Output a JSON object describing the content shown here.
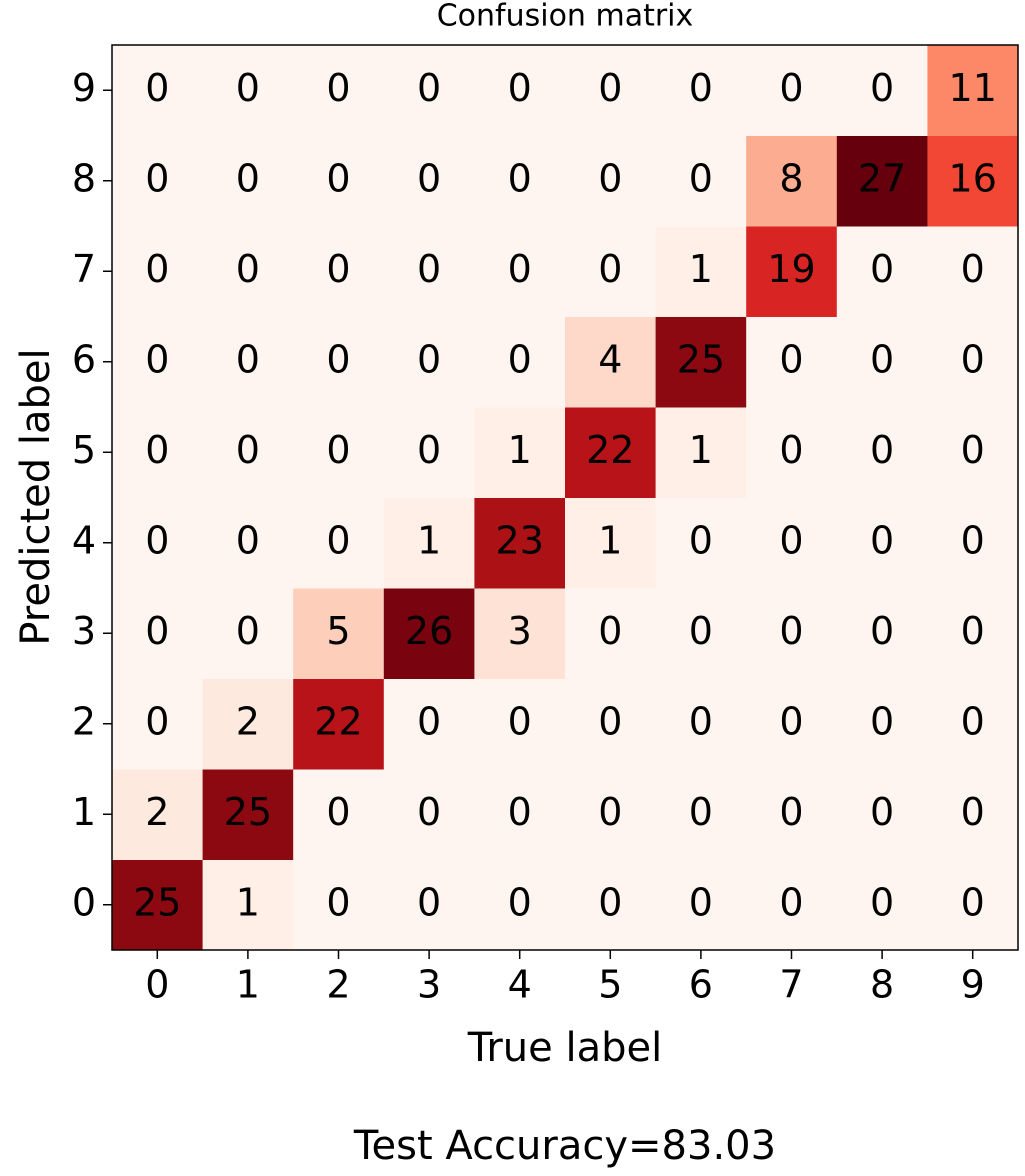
{
  "chart_data": {
    "type": "heatmap",
    "title": "Confusion matrix",
    "xlabel": "True label",
    "ylabel": "Predicted label",
    "x_categories": [
      "0",
      "1",
      "2",
      "3",
      "4",
      "5",
      "6",
      "7",
      "8",
      "9"
    ],
    "y_categories": [
      "0",
      "1",
      "2",
      "3",
      "4",
      "5",
      "6",
      "7",
      "8",
      "9"
    ],
    "values": [
      [
        25,
        1,
        0,
        0,
        0,
        0,
        0,
        0,
        0,
        0
      ],
      [
        2,
        25,
        0,
        0,
        0,
        0,
        0,
        0,
        0,
        0
      ],
      [
        0,
        2,
        22,
        0,
        0,
        0,
        0,
        0,
        0,
        0
      ],
      [
        0,
        0,
        5,
        26,
        3,
        0,
        0,
        0,
        0,
        0
      ],
      [
        0,
        0,
        0,
        1,
        23,
        1,
        0,
        0,
        0,
        0
      ],
      [
        0,
        0,
        0,
        0,
        1,
        22,
        1,
        0,
        0,
        0
      ],
      [
        0,
        0,
        0,
        0,
        0,
        4,
        25,
        0,
        0,
        0
      ],
      [
        0,
        0,
        0,
        0,
        0,
        0,
        1,
        19,
        0,
        0
      ],
      [
        0,
        0,
        0,
        0,
        0,
        0,
        0,
        8,
        27,
        16
      ],
      [
        0,
        0,
        0,
        0,
        0,
        0,
        0,
        0,
        0,
        11
      ]
    ],
    "colormap": "Reds",
    "annotation": "Test Accuracy=83.03"
  }
}
